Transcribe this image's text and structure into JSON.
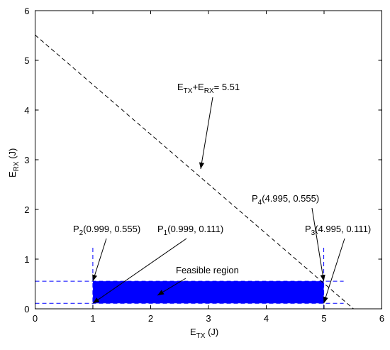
{
  "chart_data": {
    "type": "region",
    "xlabel": [
      "E",
      "TX",
      " (J)"
    ],
    "ylabel": [
      "E",
      "RX",
      " (J)"
    ],
    "xlim": [
      0,
      6
    ],
    "ylim": [
      0,
      6
    ],
    "xticks": [
      0,
      1,
      2,
      3,
      4,
      5,
      6
    ],
    "yticks": [
      0,
      1,
      2,
      3,
      4,
      5,
      6
    ],
    "line": {
      "sum": 5.51,
      "label": [
        "E",
        "TX",
        "+E",
        "RX",
        "= 5.51"
      ],
      "color": "#000000"
    },
    "region": {
      "label": "Feasible region",
      "color": "#0000ff"
    },
    "points": [
      {
        "name": "P",
        "sub": "1",
        "x": 0.999,
        "y": 0.111,
        "label": "(0.999, 0.111)"
      },
      {
        "name": "P",
        "sub": "2",
        "x": 0.999,
        "y": 0.555,
        "label": "(0.999, 0.555)"
      },
      {
        "name": "P",
        "sub": "3",
        "x": 4.995,
        "y": 0.111,
        "label": "(4.995, 0.111)"
      },
      {
        "name": "P",
        "sub": "4",
        "x": 4.995,
        "y": 0.555,
        "label": "(4.995, 0.555)"
      }
    ]
  }
}
